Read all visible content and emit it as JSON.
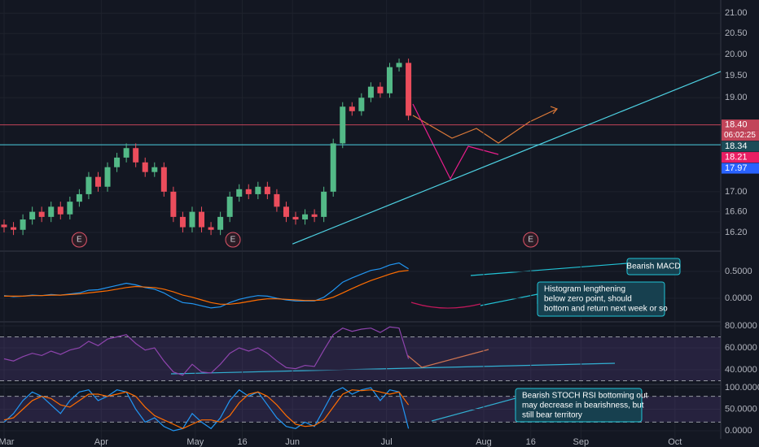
{
  "chart_data": [
    {
      "type": "candlestick",
      "log_scale": true,
      "grid": true,
      "xlim": [
        -1.3,
        228.6
      ],
      "xticks": [
        {
          "value": 0,
          "label": "Mar"
        },
        {
          "value": 31,
          "label": "Apr"
        },
        {
          "value": 61,
          "label": "May"
        },
        {
          "value": 76,
          "label": "16"
        },
        {
          "value": 92,
          "label": "Jun"
        },
        {
          "value": 122,
          "label": "Jul"
        },
        {
          "value": 153,
          "label": "Aug"
        },
        {
          "value": 168,
          "label": "16"
        },
        {
          "value": 184,
          "label": "Sep"
        },
        {
          "value": 214,
          "label": "Oct"
        }
      ],
      "ylim": [
        15.86,
        21.33
      ],
      "yticks": [
        {
          "value": 21,
          "label": "21.00"
        },
        {
          "value": 20.5,
          "label": "20.50"
        },
        {
          "value": 20,
          "label": "20.00"
        },
        {
          "value": 19.5,
          "label": "19.50"
        },
        {
          "value": 19,
          "label": "19.00"
        },
        {
          "value": 17,
          "label": "17.00"
        },
        {
          "value": 16.6,
          "label": "16.60"
        },
        {
          "value": 16.2,
          "label": "16.20"
        }
      ],
      "up_color": "#53b987",
      "down_color": "#eb4d5c",
      "x": [
        0,
        3,
        6,
        9,
        12,
        15,
        18,
        21,
        24,
        27,
        30,
        33,
        36,
        39,
        42,
        45,
        48,
        51,
        54,
        57,
        60,
        63,
        66,
        69,
        72,
        75,
        78,
        81,
        84,
        87,
        90,
        93,
        96,
        99,
        102,
        105,
        108,
        111,
        114,
        117,
        120,
        123,
        126,
        129
      ],
      "open": [
        16.35,
        16.3,
        16.25,
        16.45,
        16.6,
        16.5,
        16.7,
        16.55,
        16.8,
        16.95,
        17.3,
        17.1,
        17.5,
        17.7,
        17.9,
        17.6,
        17.4,
        17.5,
        17.0,
        16.5,
        16.3,
        16.6,
        16.3,
        16.25,
        16.5,
        16.9,
        17.05,
        16.95,
        17.1,
        16.95,
        16.7,
        16.5,
        16.45,
        16.55,
        16.5,
        17.0,
        18.0,
        18.8,
        18.7,
        19.0,
        19.25,
        19.1,
        19.7,
        19.8
      ],
      "high": [
        16.45,
        16.4,
        16.55,
        16.7,
        16.7,
        16.8,
        16.8,
        16.9,
        17.05,
        17.4,
        17.4,
        17.6,
        17.8,
        18.0,
        18.0,
        17.7,
        17.6,
        17.6,
        17.1,
        16.6,
        16.7,
        16.7,
        16.4,
        16.6,
        17.0,
        17.15,
        17.15,
        17.2,
        17.2,
        17.05,
        16.8,
        16.6,
        16.65,
        16.65,
        17.1,
        18.1,
        18.9,
        18.9,
        19.1,
        19.35,
        19.35,
        19.8,
        19.9,
        19.9
      ],
      "low": [
        16.2,
        16.15,
        16.15,
        16.35,
        16.4,
        16.4,
        16.45,
        16.45,
        16.7,
        16.85,
        17.0,
        17.0,
        17.4,
        17.6,
        17.5,
        17.3,
        17.3,
        16.9,
        16.4,
        16.2,
        16.2,
        16.2,
        16.15,
        16.15,
        16.4,
        16.8,
        16.85,
        16.85,
        16.85,
        16.6,
        16.4,
        16.35,
        16.35,
        16.4,
        16.4,
        16.9,
        17.9,
        18.6,
        18.6,
        18.9,
        19.0,
        19.0,
        19.6,
        18.5
      ],
      "close": [
        16.3,
        16.25,
        16.45,
        16.6,
        16.5,
        16.7,
        16.55,
        16.8,
        16.95,
        17.3,
        17.1,
        17.5,
        17.7,
        17.9,
        17.6,
        17.4,
        17.5,
        17.0,
        16.5,
        16.3,
        16.6,
        16.3,
        16.25,
        16.5,
        16.9,
        17.05,
        16.95,
        17.1,
        16.95,
        16.7,
        16.5,
        16.45,
        16.55,
        16.5,
        17.0,
        18.0,
        18.8,
        18.7,
        19.0,
        19.25,
        19.1,
        19.7,
        19.8,
        18.6
      ],
      "hlines": [
        {
          "value": 18.4,
          "color": "#c2455a"
        },
        {
          "value": 17.97,
          "color": "#4dd0e1"
        }
      ],
      "trendlines": [
        {
          "x": [
            92,
            228.6
          ],
          "y": [
            15.98,
            19.6
          ],
          "color": "#4dd0e1"
        }
      ],
      "earnings": [
        {
          "x": 24,
          "label": "E"
        },
        {
          "x": 73,
          "label": "E"
        },
        {
          "x": 168,
          "label": "E"
        }
      ],
      "price_labels": [
        {
          "value": 18.4,
          "label": "18.40",
          "color": "#c2455a"
        },
        {
          "value": 18.34,
          "label": "18.34",
          "color": "#1c4c58"
        },
        {
          "value": 18.21,
          "label": "18.21",
          "color": "#e91e63"
        },
        {
          "value": 17.97,
          "label": "17.97",
          "color": "#2962ff"
        }
      ],
      "countdown": "06:02:25"
    },
    {
      "type": "line",
      "grid": true,
      "ylim": [
        -0.424,
        0.864
      ],
      "yticks": [
        {
          "value": 0.5,
          "label": "0.5000"
        },
        {
          "value": 0,
          "label": "0.0000"
        }
      ],
      "x": [
        0,
        3,
        6,
        9,
        12,
        15,
        18,
        21,
        24,
        27,
        30,
        33,
        36,
        39,
        42,
        45,
        48,
        51,
        54,
        57,
        60,
        63,
        66,
        69,
        72,
        75,
        78,
        81,
        84,
        87,
        90,
        93,
        96,
        99,
        102,
        105,
        108,
        111,
        114,
        117,
        120,
        123,
        126,
        129
      ],
      "series": [
        {
          "color": "#2196f3",
          "values": [
            0.05,
            0.03,
            0.04,
            0.06,
            0.05,
            0.07,
            0.06,
            0.08,
            0.1,
            0.15,
            0.16,
            0.2,
            0.24,
            0.28,
            0.25,
            0.2,
            0.17,
            0.1,
            0.0,
            -0.08,
            -0.1,
            -0.14,
            -0.18,
            -0.16,
            -0.08,
            -0.02,
            0.02,
            0.05,
            0.04,
            0.0,
            -0.03,
            -0.05,
            -0.05,
            -0.05,
            0.02,
            0.15,
            0.3,
            0.38,
            0.45,
            0.52,
            0.55,
            0.62,
            0.66,
            0.55
          ]
        },
        {
          "color": "#ff6d00",
          "values": [
            0.04,
            0.04,
            0.04,
            0.05,
            0.05,
            0.06,
            0.06,
            0.07,
            0.08,
            0.1,
            0.12,
            0.14,
            0.17,
            0.2,
            0.22,
            0.21,
            0.2,
            0.17,
            0.12,
            0.06,
            0.02,
            -0.03,
            -0.08,
            -0.11,
            -0.11,
            -0.09,
            -0.06,
            -0.03,
            -0.01,
            -0.01,
            -0.02,
            -0.03,
            -0.04,
            -0.04,
            -0.03,
            0.02,
            0.1,
            0.18,
            0.26,
            0.33,
            0.39,
            0.45,
            0.5,
            0.52
          ]
        }
      ],
      "annotations": [
        {
          "lines": [
            "Bearish MACD"
          ]
        },
        {
          "lines": [
            "Histogram lengthening",
            "below zero point, should",
            "bottom and return next week or so"
          ]
        }
      ]
    },
    {
      "type": "line",
      "grid": true,
      "ylim": [
        27.4,
        82.96
      ],
      "yticks": [
        {
          "value": 80,
          "label": "80.0000"
        },
        {
          "value": 60,
          "label": "60.0000"
        },
        {
          "value": 40,
          "label": "40.0000"
        }
      ],
      "bands": [
        30,
        70
      ],
      "band_color": "#7e57c2",
      "x": [
        0,
        3,
        6,
        9,
        12,
        15,
        18,
        21,
        24,
        27,
        30,
        33,
        36,
        39,
        42,
        45,
        48,
        51,
        54,
        57,
        60,
        63,
        66,
        69,
        72,
        75,
        78,
        81,
        84,
        87,
        90,
        93,
        96,
        99,
        102,
        105,
        108,
        111,
        114,
        117,
        120,
        123,
        126,
        129
      ],
      "series": [
        {
          "color": "#8e44ad",
          "values": [
            50,
            48,
            52,
            55,
            53,
            57,
            54,
            58,
            60,
            66,
            62,
            68,
            70,
            72,
            64,
            58,
            60,
            48,
            38,
            35,
            45,
            38,
            37,
            45,
            55,
            60,
            57,
            60,
            55,
            48,
            42,
            41,
            44,
            43,
            58,
            72,
            78,
            75,
            77,
            78,
            74,
            79,
            78,
            50
          ]
        }
      ]
    },
    {
      "type": "line",
      "grid": true,
      "ylim": [
        -18.9,
        105.7
      ],
      "yticks": [
        {
          "value": 100,
          "label": "100.0000"
        },
        {
          "value": 50,
          "label": "50.0000"
        },
        {
          "value": 0,
          "label": "0.0000"
        }
      ],
      "bands": [
        20,
        80
      ],
      "band_color": "#7e57c2",
      "x": [
        0,
        3,
        6,
        9,
        12,
        15,
        18,
        21,
        24,
        27,
        30,
        33,
        36,
        39,
        42,
        45,
        48,
        51,
        54,
        57,
        60,
        63,
        66,
        69,
        72,
        75,
        78,
        81,
        84,
        87,
        90,
        93,
        96,
        99,
        102,
        105,
        108,
        111,
        114,
        117,
        120,
        123,
        126,
        129
      ],
      "series": [
        {
          "color": "#2196f3",
          "values": [
            20,
            40,
            70,
            90,
            80,
            60,
            40,
            70,
            90,
            95,
            70,
            80,
            95,
            90,
            50,
            20,
            30,
            10,
            0,
            5,
            40,
            20,
            5,
            30,
            70,
            95,
            80,
            90,
            60,
            30,
            10,
            5,
            20,
            10,
            50,
            90,
            100,
            85,
            95,
            100,
            70,
            95,
            90,
            5
          ]
        },
        {
          "color": "#ff6d00",
          "values": [
            25,
            30,
            50,
            70,
            80,
            75,
            60,
            55,
            70,
            85,
            85,
            80,
            85,
            90,
            80,
            55,
            35,
            25,
            15,
            5,
            15,
            25,
            25,
            20,
            35,
            65,
            85,
            90,
            80,
            60,
            35,
            15,
            10,
            12,
            25,
            55,
            85,
            95,
            93,
            95,
            90,
            85,
            90,
            60
          ]
        }
      ],
      "annotations": [
        {
          "lines": [
            "Bearish STOCH RSI bottoming out",
            "may decrease in bearishness, but",
            "still bear territory"
          ]
        }
      ]
    }
  ]
}
